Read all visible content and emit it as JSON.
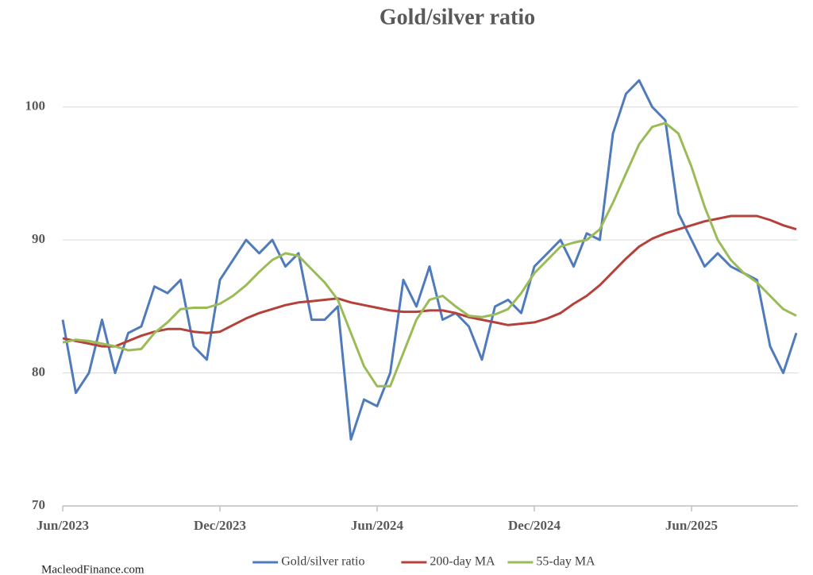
{
  "chart_data": {
    "type": "line",
    "title": "Gold/silver ratio",
    "source": "MacleodFinance.com",
    "categories": [
      "Jun/2023",
      null,
      null,
      null,
      null,
      null,
      null,
      null,
      null,
      null,
      null,
      null,
      "Dec/2023",
      null,
      null,
      null,
      null,
      null,
      null,
      null,
      null,
      null,
      null,
      null,
      "Jun/2024",
      null,
      null,
      null,
      null,
      null,
      null,
      null,
      null,
      null,
      null,
      null,
      "Dec/2024",
      null,
      null,
      null,
      null,
      null,
      null,
      null,
      null,
      null,
      null,
      null,
      "Jun/2025",
      null,
      null,
      null,
      null,
      null,
      null,
      null,
      null
    ],
    "series": [
      {
        "name": "Gold/silver ratio",
        "color": "#4f7bbd",
        "width": 3,
        "values": [
          84,
          78.5,
          80,
          84,
          80,
          83,
          83.5,
          86.5,
          86,
          87,
          82,
          81,
          87,
          88.5,
          90,
          89,
          90,
          88,
          89,
          84,
          84,
          85,
          75,
          78,
          77.5,
          80,
          87,
          85,
          88,
          84,
          84.5,
          83.5,
          81,
          85,
          85.5,
          84.5,
          88,
          89,
          90,
          88,
          90.5,
          90,
          98,
          101,
          102,
          100,
          99,
          92,
          90,
          88,
          89,
          88,
          87.5,
          87,
          82,
          80,
          83
        ]
      },
      {
        "name": "200-day MA",
        "color": "#b5413b",
        "width": 3,
        "values": [
          82.6,
          82.4,
          82.2,
          82,
          82,
          82.4,
          82.8,
          83.1,
          83.3,
          83.3,
          83.1,
          83,
          83.1,
          83.6,
          84.1,
          84.5,
          84.8,
          85.1,
          85.3,
          85.4,
          85.5,
          85.6,
          85.3,
          85.1,
          84.9,
          84.7,
          84.6,
          84.6,
          84.7,
          84.7,
          84.5,
          84.2,
          84,
          83.8,
          83.6,
          83.7,
          83.8,
          84.1,
          84.5,
          85.2,
          85.8,
          86.6,
          87.6,
          88.6,
          89.5,
          90.1,
          90.5,
          90.8,
          91.1,
          91.4,
          91.6,
          91.8,
          91.8,
          91.8,
          91.5,
          91.1,
          90.8
        ]
      },
      {
        "name": "55-day MA",
        "color": "#9bbb59",
        "width": 3,
        "values": [
          82.3,
          82.5,
          82.4,
          82.2,
          82,
          81.7,
          81.8,
          83,
          83.8,
          84.8,
          84.9,
          84.9,
          85.2,
          85.8,
          86.6,
          87.6,
          88.5,
          89,
          88.8,
          87.8,
          86.8,
          85.5,
          83,
          80.5,
          79,
          79,
          81.5,
          84,
          85.5,
          85.8,
          85,
          84.3,
          84.2,
          84.4,
          84.8,
          86,
          87.5,
          88.5,
          89.5,
          89.8,
          90,
          90.8,
          92.8,
          95,
          97.2,
          98.5,
          98.8,
          98,
          95.5,
          92.5,
          90,
          88.5,
          87.5,
          86.8,
          85.8,
          84.8,
          84.3
        ]
      }
    ],
    "ylim": [
      70,
      105
    ],
    "yticks": [
      70,
      80,
      90,
      100
    ],
    "grid": true,
    "legend": "bottom"
  }
}
